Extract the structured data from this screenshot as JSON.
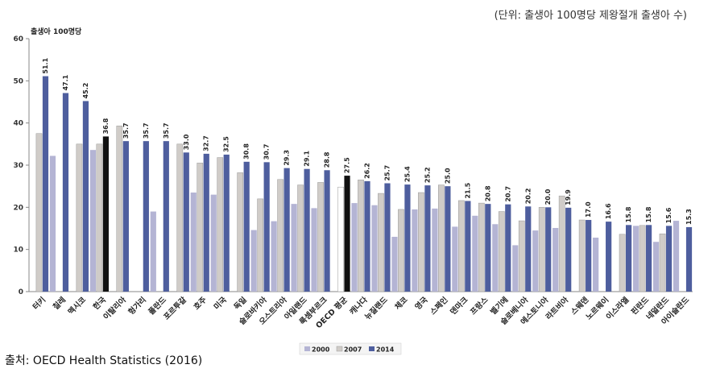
{
  "unit_note": "(단위: 출생아 100명당 제왕절개 출생아 수)",
  "source_note": "출처: OECD Health Statistics (2016)",
  "colors": {
    "s2000": "#b4b4d4",
    "s2007": "#d0ccc8",
    "s2014": "#4e5e9e",
    "highlight2014": "#111111",
    "highlight2007": "#888478",
    "axis": "#888888"
  },
  "chart_data": {
    "type": "bar",
    "ylabel": "출생아 100명당",
    "ylim": [
      0,
      60
    ],
    "yticks": [
      0,
      10,
      20,
      30,
      40,
      50,
      60
    ],
    "grid": false,
    "legend_position": "bottom-center",
    "categories": [
      "터키",
      "칠레",
      "멕시코",
      "한국",
      "이탈리아",
      "헝가리",
      "폴란드",
      "포르투갈",
      "호주",
      "미국",
      "독일",
      "슬로바키아",
      "오스트리아",
      "아일랜드",
      "룩셈부르크",
      "OECD 평균",
      "캐나다",
      "뉴질랜드",
      "체코",
      "영국",
      "스페인",
      "덴마크",
      "프랑스",
      "벨기에",
      "슬로베니아",
      "에스토니아",
      "라트비아",
      "스웨덴",
      "노르웨이",
      "이스라엘",
      "핀란드",
      "네덜란드",
      "아이슬란드"
    ],
    "highlight": [
      "한국",
      "OECD 평균"
    ],
    "series": [
      {
        "name": "2000",
        "values": [
          null,
          32.2,
          null,
          33.6,
          null,
          null,
          19.0,
          null,
          23.5,
          23.0,
          null,
          14.6,
          16.7,
          20.8,
          19.8,
          null,
          21.0,
          20.5,
          13.0,
          19.5,
          19.7,
          15.4,
          18.0,
          16.0,
          11.0,
          14.5,
          15.1,
          null,
          12.8,
          null,
          15.6,
          11.8,
          16.8
        ]
      },
      {
        "name": "2007",
        "values": [
          37.5,
          null,
          35.0,
          35.0,
          39.3,
          null,
          null,
          35.0,
          30.5,
          31.8,
          28.2,
          22.0,
          26.6,
          25.3,
          25.9,
          24.8,
          26.5,
          23.3,
          19.5,
          23.5,
          25.3,
          21.6,
          21.0,
          19.0,
          16.8,
          20.0,
          22.7,
          17.0,
          null,
          13.6,
          15.7,
          13.7,
          null
        ]
      },
      {
        "name": "2014",
        "values": [
          51.1,
          47.1,
          45.2,
          36.8,
          35.7,
          35.7,
          35.7,
          33.0,
          32.7,
          32.5,
          30.8,
          30.7,
          29.3,
          29.1,
          28.8,
          27.5,
          26.2,
          25.7,
          25.4,
          25.2,
          25.0,
          21.5,
          20.8,
          20.7,
          20.2,
          20.0,
          19.9,
          17.0,
          16.6,
          15.8,
          15.8,
          15.6,
          15.3
        ]
      }
    ],
    "value_labels": [
      "51.1",
      "47.1",
      "45.2",
      "36.8",
      "35.7",
      "35.7",
      "35.7",
      "33.0",
      "32.7",
      "32.5",
      "30.8",
      "30.7",
      "29.3",
      "29.1",
      "28.8",
      "27.5",
      "26.2",
      "25.7",
      "25.4",
      "25.2",
      "25.0",
      "21.5",
      "20.8",
      "20.7",
      "20.2",
      "20.0",
      "19.9",
      "17.0",
      "16.6",
      "15.8",
      "15.8",
      "15.6",
      "15.3"
    ]
  }
}
